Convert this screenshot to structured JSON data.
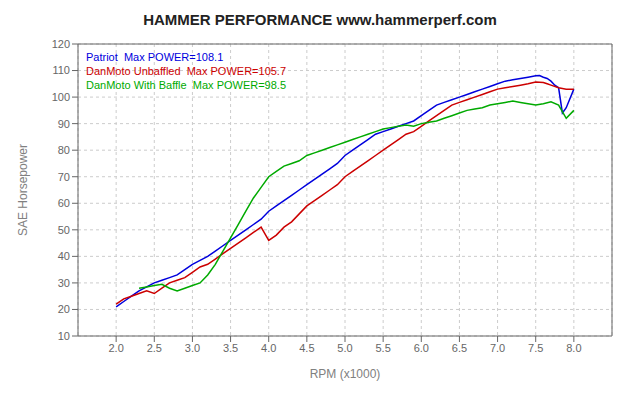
{
  "chart_data": {
    "type": "line",
    "title": "HAMMER PERFORMANCE www.hammerperf.com",
    "xlabel": "RPM (x1000)",
    "ylabel": "SAE Horsepower",
    "xlim": [
      1.5,
      8.5
    ],
    "ylim": [
      10,
      120
    ],
    "xticks": [
      {
        "value": 2.0,
        "label": "2.0"
      },
      2.5,
      {
        "value": 3.0,
        "label": "3.0"
      },
      3.5,
      {
        "value": 4.0,
        "label": "4.0"
      },
      4.5,
      {
        "value": 5.0,
        "label": "5.0"
      },
      5.5,
      {
        "value": 6.0,
        "label": "6.0"
      },
      6.5,
      {
        "value": 7.0,
        "label": "7.0"
      },
      7.5,
      {
        "value": 8.0,
        "label": "8.0"
      }
    ],
    "yticks": [
      10,
      20,
      30,
      40,
      50,
      60,
      70,
      80,
      90,
      100,
      110,
      120
    ],
    "grid": true,
    "legend": "upper left",
    "series": [
      {
        "name": "Patriot  Max POWER=108.1",
        "color": "#0000dd",
        "x": [
          2.0,
          2.1,
          2.2,
          2.3,
          2.4,
          2.5,
          2.6,
          2.7,
          2.8,
          2.9,
          3.0,
          3.1,
          3.2,
          3.3,
          3.4,
          3.5,
          3.6,
          3.7,
          3.8,
          3.9,
          4.0,
          4.1,
          4.2,
          4.3,
          4.4,
          4.5,
          4.6,
          4.7,
          4.8,
          4.9,
          5.0,
          5.1,
          5.2,
          5.3,
          5.4,
          5.5,
          5.6,
          5.7,
          5.8,
          5.9,
          6.0,
          6.1,
          6.2,
          6.3,
          6.4,
          6.5,
          6.6,
          6.7,
          6.8,
          6.9,
          7.0,
          7.1,
          7.2,
          7.3,
          7.4,
          7.5,
          7.55,
          7.6,
          7.65,
          7.7,
          7.75,
          7.8,
          7.85,
          7.9,
          8.0
        ],
        "values": [
          21,
          23,
          25,
          27,
          28.5,
          30,
          31,
          32,
          33,
          35,
          37,
          38.5,
          40,
          42,
          44,
          46,
          48,
          50,
          52,
          54,
          57,
          59,
          61,
          63,
          65,
          67,
          69,
          71,
          73,
          75,
          78,
          80,
          82,
          84,
          86,
          87,
          88,
          89,
          90,
          91,
          93,
          95,
          97,
          98,
          99,
          100,
          101,
          102,
          103,
          104,
          105,
          106,
          106.5,
          107,
          107.5,
          108,
          108.1,
          107.5,
          107,
          106,
          104.5,
          103.5,
          94,
          96,
          103
        ]
      },
      {
        "name": "DanMoto Unbaffled  Max POWER=105.7",
        "color": "#cc0000",
        "x": [
          2.0,
          2.1,
          2.2,
          2.3,
          2.4,
          2.5,
          2.6,
          2.7,
          2.8,
          2.9,
          3.0,
          3.1,
          3.2,
          3.3,
          3.4,
          3.5,
          3.6,
          3.7,
          3.8,
          3.9,
          4.0,
          4.1,
          4.2,
          4.3,
          4.4,
          4.5,
          4.6,
          4.7,
          4.8,
          4.9,
          5.0,
          5.1,
          5.2,
          5.3,
          5.4,
          5.5,
          5.6,
          5.7,
          5.8,
          5.9,
          6.0,
          6.1,
          6.2,
          6.3,
          6.4,
          6.5,
          6.6,
          6.7,
          6.8,
          6.9,
          7.0,
          7.1,
          7.2,
          7.3,
          7.4,
          7.5,
          7.6,
          7.65,
          7.7,
          7.8,
          7.9,
          8.0
        ],
        "values": [
          22,
          24,
          25,
          26,
          27,
          26,
          28,
          30,
          31,
          32,
          34,
          36,
          37,
          39,
          41,
          43,
          45,
          47,
          49,
          51,
          46,
          48,
          51,
          53,
          56,
          59,
          61,
          63,
          65,
          67,
          70,
          72,
          74,
          76,
          78,
          80,
          82,
          84,
          86,
          87,
          89,
          91,
          93,
          95,
          97,
          98,
          99,
          100,
          101,
          102,
          103,
          103.5,
          104,
          104.5,
          105,
          105.7,
          105.5,
          105,
          104.5,
          103.5,
          103,
          103
        ]
      },
      {
        "name": "DanMoto With Baffle  Max POWER=98.5",
        "color": "#00aa00",
        "x": [
          2.3,
          2.4,
          2.5,
          2.6,
          2.7,
          2.8,
          2.9,
          3.0,
          3.1,
          3.2,
          3.3,
          3.4,
          3.5,
          3.6,
          3.7,
          3.8,
          3.9,
          4.0,
          4.1,
          4.2,
          4.3,
          4.4,
          4.5,
          4.6,
          4.7,
          4.8,
          4.9,
          5.0,
          5.1,
          5.2,
          5.3,
          5.4,
          5.5,
          5.6,
          5.7,
          5.8,
          5.9,
          6.0,
          6.1,
          6.2,
          6.3,
          6.4,
          6.5,
          6.6,
          6.7,
          6.8,
          6.9,
          7.0,
          7.1,
          7.2,
          7.3,
          7.4,
          7.5,
          7.6,
          7.7,
          7.8,
          7.9,
          8.0
        ],
        "values": [
          28,
          28.5,
          29,
          29.5,
          28,
          27,
          28,
          29,
          30,
          33,
          37,
          42,
          47,
          52,
          57,
          62,
          66,
          70,
          72,
          74,
          75,
          76,
          78,
          79,
          80,
          81,
          82,
          83,
          84,
          85,
          86,
          87,
          88,
          88.5,
          89,
          89.5,
          89,
          90,
          90.5,
          91,
          92,
          93,
          94,
          95,
          95.5,
          96,
          97,
          97.5,
          98,
          98.5,
          98,
          97.5,
          97,
          97.5,
          98.2,
          97,
          92,
          95
        ]
      }
    ]
  }
}
